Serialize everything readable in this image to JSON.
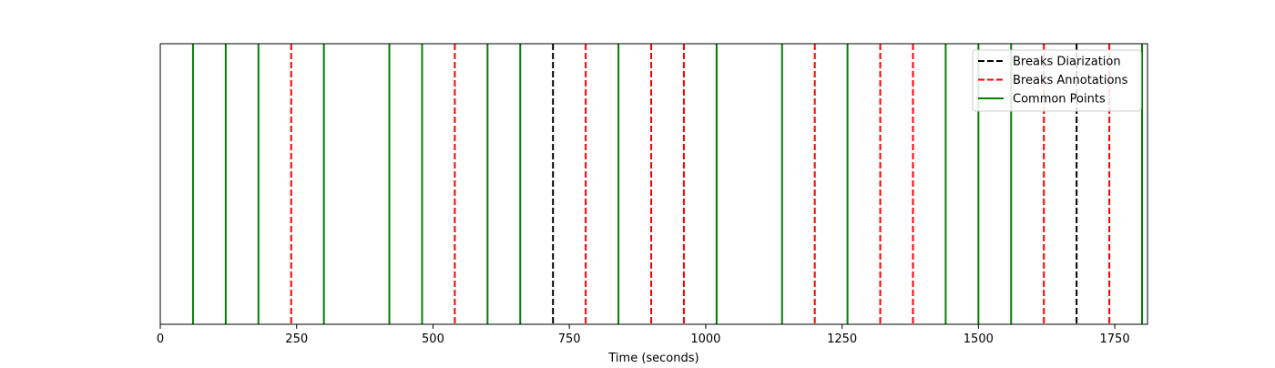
{
  "chart_data": {
    "type": "line",
    "title": "",
    "xlabel": "Time (seconds)",
    "ylabel": "",
    "xlim": [
      0,
      1810
    ],
    "ylim": [
      0,
      1
    ],
    "xticks": [
      {
        "value": 0,
        "label": "0"
      },
      {
        "value": 250,
        "label": "250"
      },
      {
        "value": 500,
        "label": "500"
      },
      {
        "value": 750,
        "label": "750"
      },
      {
        "value": 1000,
        "label": "1000"
      },
      {
        "value": 1250,
        "label": "1250"
      },
      {
        "value": 1500,
        "label": "1500"
      },
      {
        "value": 1750,
        "label": "1750"
      }
    ],
    "yticks_visible": false,
    "grid": false,
    "legend_position": "top-right",
    "series": [
      {
        "name": "Breaks Diarization",
        "color": "#000000",
        "style": "dashed",
        "x": [
          720,
          1680
        ]
      },
      {
        "name": "Breaks Annotations",
        "color": "#ff0000",
        "style": "dashed",
        "x": [
          240,
          540,
          780,
          900,
          960,
          1200,
          1320,
          1380,
          1620,
          1740
        ]
      },
      {
        "name": "Common Points",
        "color": "#008000",
        "style": "solid",
        "x": [
          60,
          120,
          180,
          300,
          420,
          480,
          600,
          660,
          840,
          1020,
          1140,
          1260,
          1440,
          1500,
          1560,
          1800
        ]
      }
    ]
  }
}
